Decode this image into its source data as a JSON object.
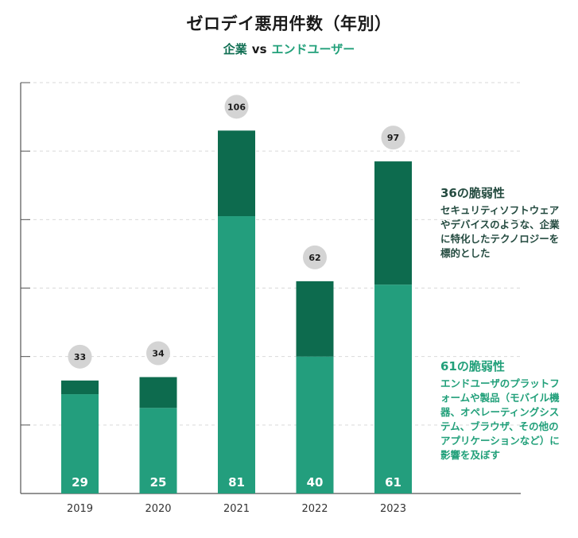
{
  "header": {
    "title": "ゼロデイ悪用件数（年別）",
    "subtitle_a": "企業",
    "subtitle_vs": "vs",
    "subtitle_b": "エンドユーザー"
  },
  "annotations": {
    "enterprise": {
      "head": "36の脆弱性",
      "body": "セキュリティソフトウェアやデバイスのような、企業に特化したテクノロジーを標的とした"
    },
    "enduser": {
      "head": "61の脆弱性",
      "body": "エンドユーザのプラットフォームや製品（モバイル機器、オペレーティングシステム、ブラウザ、その他のアプリケーションなど）に影響を及ぼす"
    }
  },
  "colors": {
    "enterprise": "#0d6b4e",
    "enduser": "#239e7d",
    "total_badge": "#d4d4d4",
    "grid": "#d9d9d9",
    "axis": "#555555"
  },
  "chart_data": {
    "type": "bar",
    "stacked": true,
    "categories": [
      "2019",
      "2020",
      "2021",
      "2022",
      "2023"
    ],
    "series": [
      {
        "values": [
          29,
          25,
          81,
          40,
          61
        ]
      },
      {
        "values": [
          4,
          9,
          25,
          22,
          36
        ]
      }
    ],
    "totals": [
      33,
      34,
      106,
      62,
      97
    ],
    "ylim": [
      0,
      120
    ],
    "grid": true
  }
}
